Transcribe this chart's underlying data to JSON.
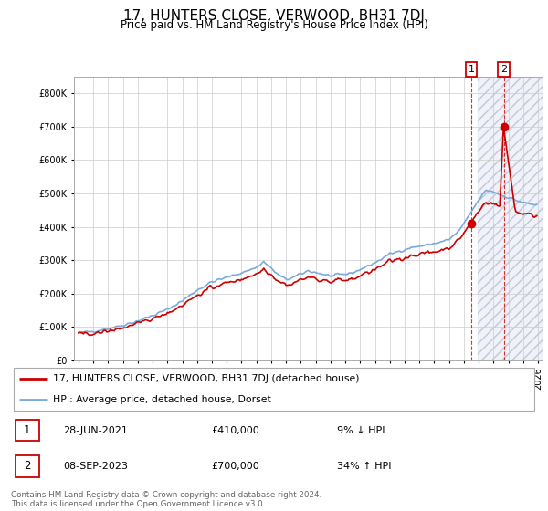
{
  "title": "17, HUNTERS CLOSE, VERWOOD, BH31 7DJ",
  "subtitle": "Price paid vs. HM Land Registry's House Price Index (HPI)",
  "legend_line1": "17, HUNTERS CLOSE, VERWOOD, BH31 7DJ (detached house)",
  "legend_line2": "HPI: Average price, detached house, Dorset",
  "annotation1_label": "1",
  "annotation1_date": "28-JUN-2021",
  "annotation1_price": "£410,000",
  "annotation1_hpi": "9% ↓ HPI",
  "annotation2_label": "2",
  "annotation2_date": "08-SEP-2023",
  "annotation2_price": "£700,000",
  "annotation2_hpi": "34% ↑ HPI",
  "footer": "Contains HM Land Registry data © Crown copyright and database right 2024.\nThis data is licensed under the Open Government Licence v3.0.",
  "red_color": "#cc0000",
  "blue_color": "#7aaadd",
  "background_color": "#ffffff",
  "grid_color": "#cccccc",
  "ylim": [
    0,
    850000
  ],
  "xlim_start": 1994.7,
  "xlim_end": 2026.3,
  "hatch_start": 2021.9,
  "sale1_x": 2021.49,
  "sale1_y": 410000,
  "sale2_x": 2023.69,
  "sale2_y": 700000
}
